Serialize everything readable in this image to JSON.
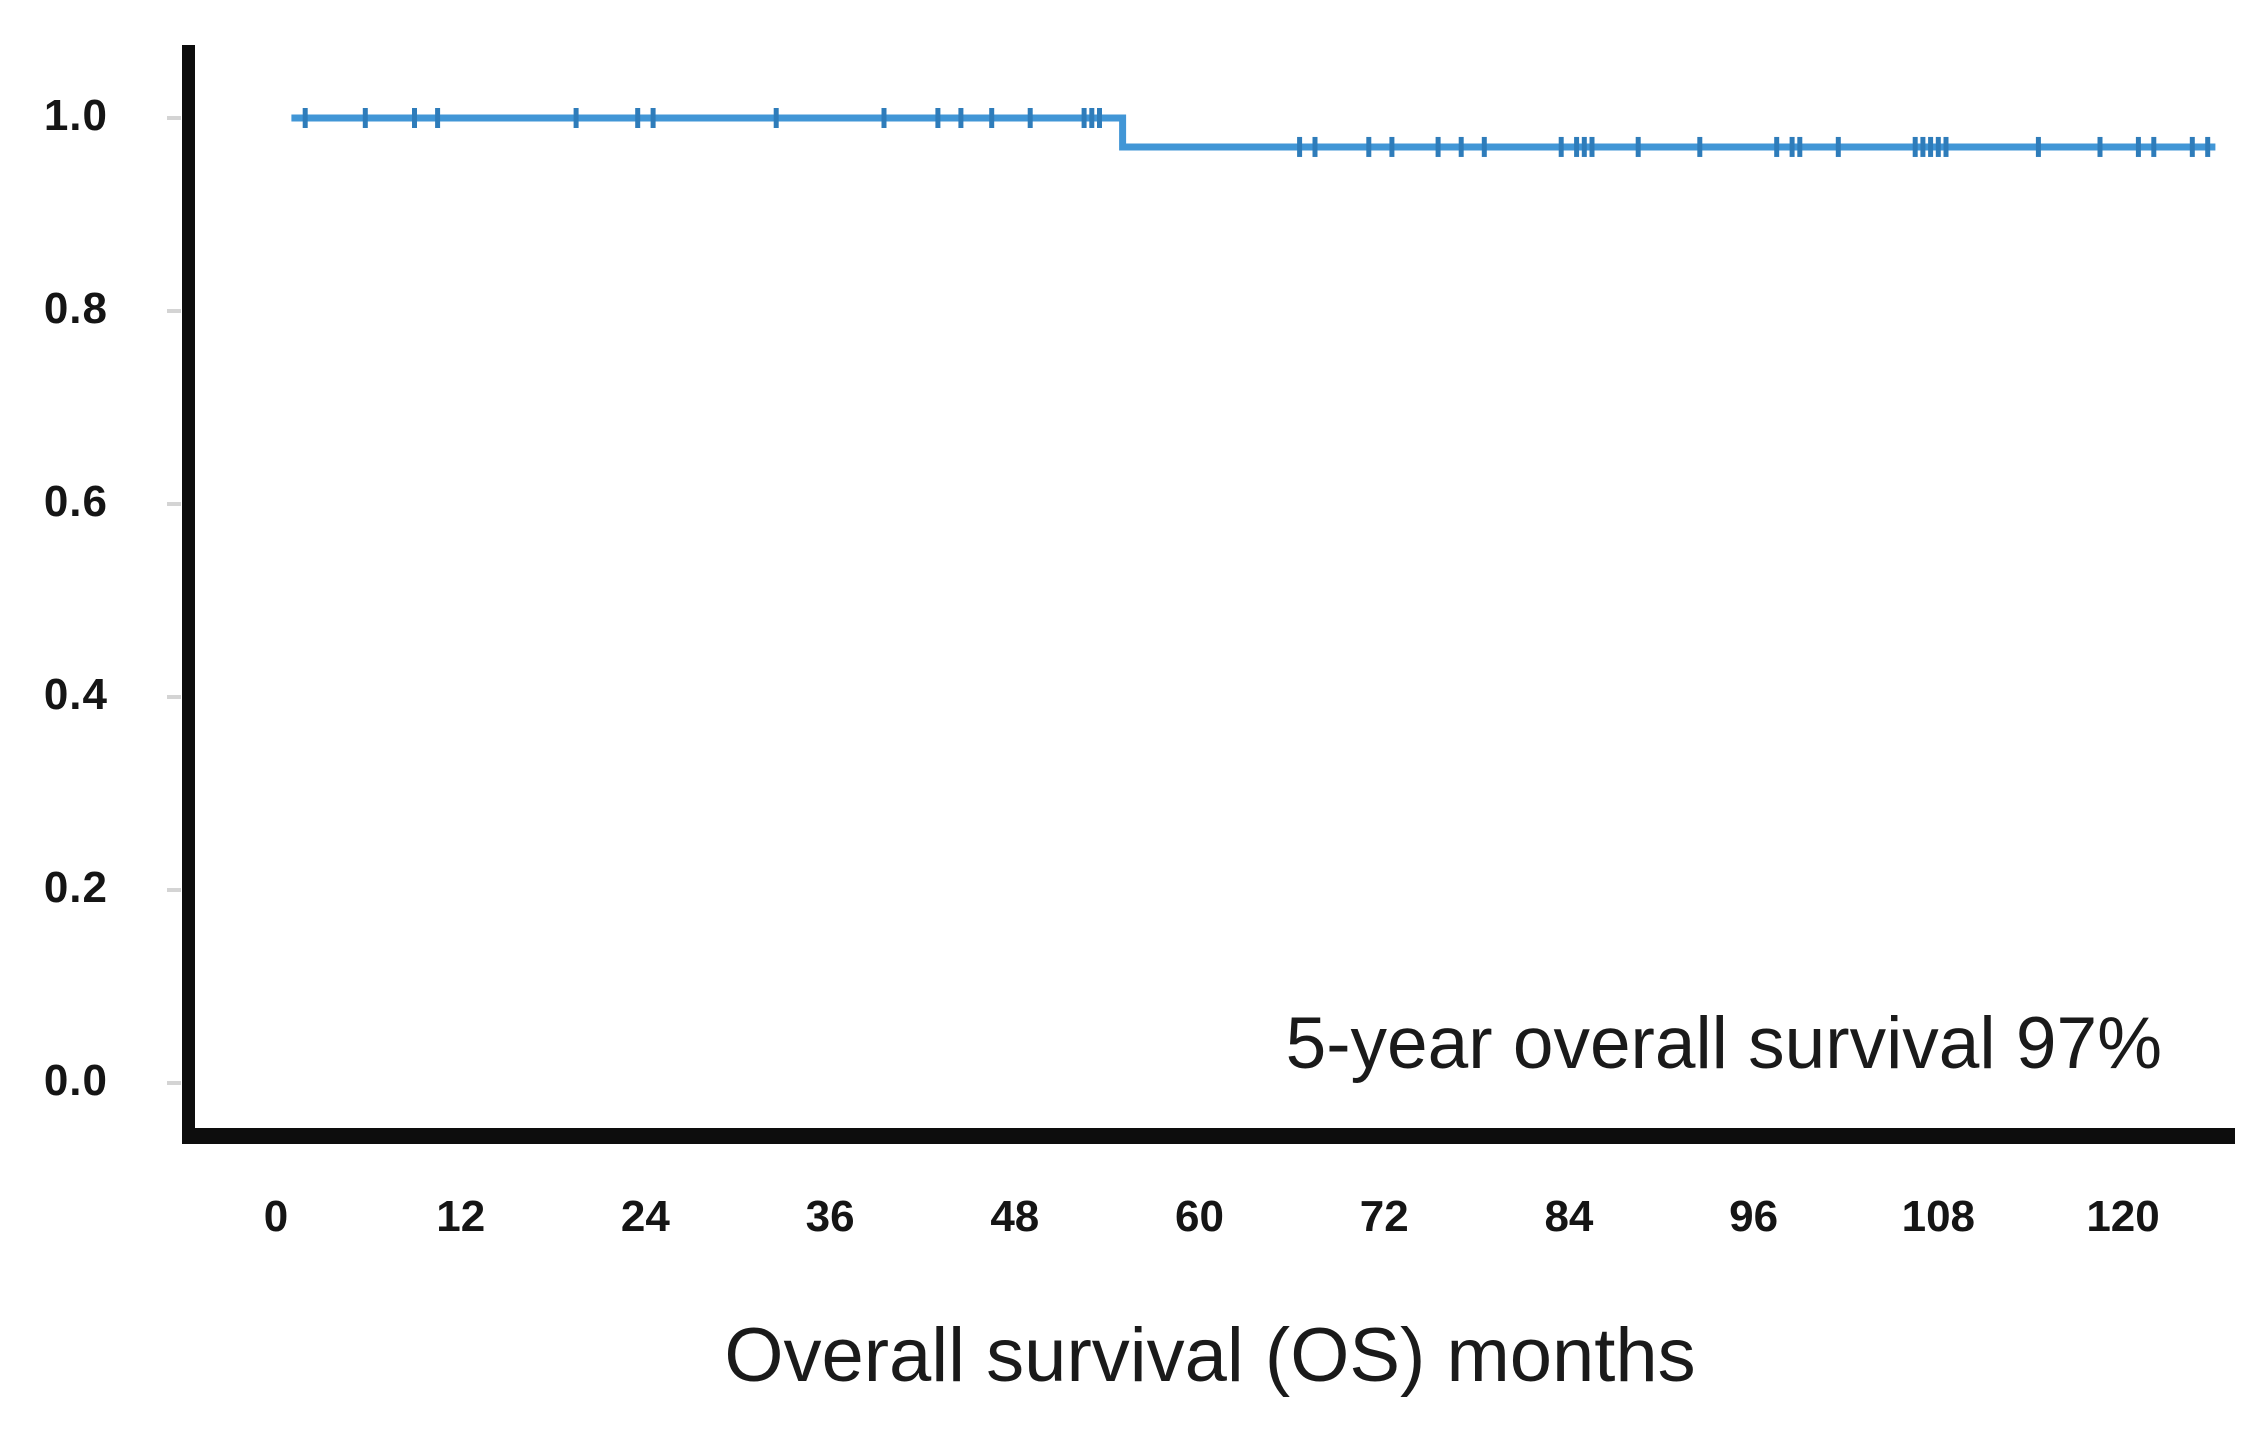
{
  "figure": {
    "background_color": "#ffffff",
    "axis_color": "#0d0d0d",
    "text_color": "#1a1a1a"
  },
  "chart_data": {
    "type": "line",
    "subtype": "kaplan_meier_step_curve",
    "title": "",
    "xlabel": "Overall survival (OS) months",
    "ylabel": "",
    "xlim": [
      0,
      127
    ],
    "ylim": [
      0,
      1.05
    ],
    "grid": false,
    "legend": false,
    "x_ticks": [
      0,
      12,
      24,
      36,
      48,
      60,
      72,
      84,
      96,
      108,
      120
    ],
    "x_tick_labels": [
      "0",
      "12",
      "24",
      "36",
      "48",
      "60",
      "72",
      "84",
      "96",
      "108",
      "120"
    ],
    "y_ticks": [
      1.0,
      0.8,
      0.6,
      0.4,
      0.2,
      0.0
    ],
    "y_tick_labels": [
      "1.0",
      "0.8",
      "0.6",
      "0.4",
      "0.2",
      "0.0"
    ],
    "annotation": {
      "text": "5-year overall survival 97%",
      "position": "bottom-right"
    },
    "series": [
      {
        "name": "overall-survival",
        "color": "#4196d6",
        "censor_color": "#2e7cba",
        "points": [
          {
            "month": 1,
            "survival": 1.0
          },
          {
            "month": 55,
            "survival": 1.0
          },
          {
            "month": 55,
            "survival": 0.97
          },
          {
            "month": 126,
            "survival": 0.97
          }
        ],
        "events": [
          {
            "month": 55,
            "survival_drops_to": 0.97
          }
        ],
        "censor_marks": [
          {
            "month": 1.9,
            "survival": 1.0
          },
          {
            "month": 5.8,
            "survival": 1.0
          },
          {
            "month": 9.0,
            "survival": 1.0
          },
          {
            "month": 10.5,
            "survival": 1.0
          },
          {
            "month": 19.5,
            "survival": 1.0
          },
          {
            "month": 23.5,
            "survival": 1.0
          },
          {
            "month": 24.5,
            "survival": 1.0
          },
          {
            "month": 32.5,
            "survival": 1.0
          },
          {
            "month": 39.5,
            "survival": 1.0
          },
          {
            "month": 43.0,
            "survival": 1.0
          },
          {
            "month": 44.5,
            "survival": 1.0
          },
          {
            "month": 46.5,
            "survival": 1.0
          },
          {
            "month": 49.0,
            "survival": 1.0
          },
          {
            "month": 52.5,
            "survival": 1.0
          },
          {
            "month": 53.0,
            "survival": 1.0
          },
          {
            "month": 53.5,
            "survival": 1.0
          },
          {
            "month": 66.5,
            "survival": 0.97
          },
          {
            "month": 67.5,
            "survival": 0.97
          },
          {
            "month": 71.0,
            "survival": 0.97
          },
          {
            "month": 72.5,
            "survival": 0.97
          },
          {
            "month": 75.5,
            "survival": 0.97
          },
          {
            "month": 77.0,
            "survival": 0.97
          },
          {
            "month": 78.5,
            "survival": 0.97
          },
          {
            "month": 83.5,
            "survival": 0.97
          },
          {
            "month": 84.5,
            "survival": 0.97
          },
          {
            "month": 85.0,
            "survival": 0.97
          },
          {
            "month": 85.5,
            "survival": 0.97
          },
          {
            "month": 88.5,
            "survival": 0.97
          },
          {
            "month": 92.5,
            "survival": 0.97
          },
          {
            "month": 97.5,
            "survival": 0.97
          },
          {
            "month": 98.5,
            "survival": 0.97
          },
          {
            "month": 99.0,
            "survival": 0.97
          },
          {
            "month": 101.5,
            "survival": 0.97
          },
          {
            "month": 106.5,
            "survival": 0.97
          },
          {
            "month": 107.0,
            "survival": 0.97
          },
          {
            "month": 107.5,
            "survival": 0.97
          },
          {
            "month": 108.0,
            "survival": 0.97
          },
          {
            "month": 108.5,
            "survival": 0.97
          },
          {
            "month": 114.5,
            "survival": 0.97
          },
          {
            "month": 118.5,
            "survival": 0.97
          },
          {
            "month": 121.0,
            "survival": 0.97
          },
          {
            "month": 122.0,
            "survival": 0.97
          },
          {
            "month": 124.5,
            "survival": 0.97
          },
          {
            "month": 125.5,
            "survival": 0.97
          }
        ],
        "five_year_overall_survival": "97%"
      }
    ]
  }
}
